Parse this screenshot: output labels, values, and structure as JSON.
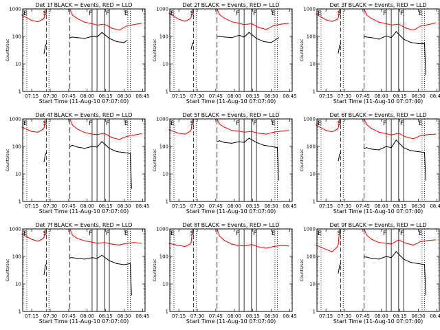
{
  "figure": {
    "title_template": "Det {det}f BLACK = Events, RED = LLD",
    "ylabel": "Counts/sec",
    "xlabel": "Start Time (11-Aug-10 07:07:40)",
    "xticks": [
      "07:15",
      "07:30",
      "07:45",
      "08:00",
      "08:15",
      "08:30",
      "08:45"
    ],
    "yticks": [
      "1",
      "10",
      "100",
      "1000"
    ],
    "flags": [
      "E",
      "S",
      "F",
      "F",
      "E"
    ]
  },
  "chart_data": [
    {
      "type": "line",
      "detector": 1,
      "title": "Det 1f BLACK = Events, RED = LLD",
      "xlabel": "Start Time (11-Aug-10 07:07:40)",
      "ylabel": "Counts/sec",
      "yscale": "log",
      "ylim": [
        1,
        1000
      ],
      "xlim": [
        "07:07",
        "08:47"
      ],
      "series": [
        {
          "name": "Events",
          "color": "#000000",
          "x": [
            "07:25",
            "07:26",
            "07:27",
            "07:46",
            "07:48",
            "07:52",
            "07:58",
            "08:04",
            "08:08",
            "08:12",
            "08:18",
            "08:24",
            "08:30",
            "08:32"
          ],
          "y": [
            24,
            45,
            55,
            90,
            95,
            90,
            85,
            100,
            95,
            140,
            85,
            65,
            60,
            70
          ]
        },
        {
          "name": "LLD",
          "color": "#ff0000",
          "x": [
            "07:07",
            "07:15",
            "07:20",
            "07:24",
            "07:25",
            "07:26",
            "07:27",
            "07:46",
            "07:48",
            "07:52",
            "07:58",
            "08:04",
            "08:08",
            "08:14",
            "08:20",
            "08:26",
            "08:32",
            "08:38",
            "08:44"
          ],
          "y": [
            600,
            380,
            340,
            420,
            470,
            1000,
            1000,
            1000,
            600,
            450,
            330,
            290,
            260,
            280,
            200,
            170,
            240,
            270,
            300
          ]
        }
      ]
    },
    {
      "type": "line",
      "detector": 2,
      "title": "Det 2f BLACK = Events, RED = LLD",
      "xlabel": "Start Time (11-Aug-10 07:07:40)",
      "ylabel": "Counts/sec",
      "yscale": "log",
      "ylim": [
        1,
        1000
      ],
      "xlim": [
        "07:07",
        "08:47"
      ],
      "series": [
        {
          "name": "Events",
          "color": "#000000",
          "x": [
            "07:25",
            "07:26",
            "07:27",
            "07:46",
            "07:48",
            "07:52",
            "07:58",
            "08:04",
            "08:08",
            "08:12",
            "08:18",
            "08:24",
            "08:30",
            "08:36"
          ],
          "y": [
            35,
            55,
            60,
            100,
            100,
            95,
            90,
            110,
            95,
            140,
            85,
            65,
            60,
            90
          ]
        },
        {
          "name": "LLD",
          "color": "#ff0000",
          "x": [
            "07:07",
            "07:15",
            "07:20",
            "07:24",
            "07:25",
            "07:26",
            "07:27",
            "07:46",
            "07:48",
            "07:52",
            "07:58",
            "08:04",
            "08:08",
            "08:14",
            "08:20",
            "08:26",
            "08:32",
            "08:38",
            "08:44"
          ],
          "y": [
            700,
            420,
            360,
            430,
            500,
            1000,
            1000,
            1000,
            620,
            460,
            340,
            300,
            270,
            290,
            210,
            180,
            250,
            280,
            300
          ]
        }
      ]
    },
    {
      "type": "line",
      "detector": 3,
      "title": "Det 3f BLACK = Events, RED = LLD",
      "xlabel": "Start Time (11-Aug-10 07:07:40)",
      "ylabel": "Counts/sec",
      "yscale": "log",
      "ylim": [
        1,
        1000
      ],
      "xlim": [
        "07:07",
        "08:47"
      ],
      "series": [
        {
          "name": "Events",
          "color": "#000000",
          "x": [
            "07:25",
            "07:26",
            "07:27",
            "07:46",
            "07:48",
            "07:52",
            "07:58",
            "08:04",
            "08:08",
            "08:12",
            "08:18",
            "08:24",
            "08:30",
            "08:35",
            "08:36"
          ],
          "y": [
            25,
            45,
            55,
            100,
            95,
            90,
            80,
            105,
            90,
            150,
            80,
            60,
            55,
            55,
            4
          ]
        },
        {
          "name": "LLD",
          "color": "#ff0000",
          "x": [
            "07:07",
            "07:15",
            "07:20",
            "07:24",
            "07:25",
            "07:26",
            "07:27",
            "07:46",
            "07:48",
            "07:52",
            "07:58",
            "08:04",
            "08:08",
            "08:14",
            "08:20",
            "08:26",
            "08:32",
            "08:38",
            "08:44"
          ],
          "y": [
            650,
            400,
            350,
            420,
            480,
            1000,
            1000,
            1000,
            600,
            450,
            330,
            290,
            260,
            280,
            200,
            170,
            240,
            270,
            310
          ]
        }
      ]
    },
    {
      "type": "line",
      "detector": 4,
      "title": "Det 4f BLACK = Events, RED = LLD",
      "xlabel": "Start Time (11-Aug-10 07:07:40)",
      "ylabel": "Counts/sec",
      "yscale": "log",
      "ylim": [
        1,
        1000
      ],
      "xlim": [
        "07:07",
        "08:47"
      ],
      "series": [
        {
          "name": "Events",
          "color": "#000000",
          "x": [
            "07:25",
            "07:26",
            "07:27",
            "07:46",
            "07:48",
            "07:52",
            "07:58",
            "08:04",
            "08:08",
            "08:12",
            "08:18",
            "08:24",
            "08:30",
            "08:35",
            "08:36"
          ],
          "y": [
            28,
            50,
            60,
            100,
            110,
            95,
            85,
            100,
            95,
            150,
            85,
            65,
            60,
            55,
            3
          ]
        },
        {
          "name": "LLD",
          "color": "#ff0000",
          "x": [
            "07:07",
            "07:15",
            "07:20",
            "07:24",
            "07:25",
            "07:26",
            "07:27",
            "07:46",
            "07:48",
            "07:52",
            "07:58",
            "08:04",
            "08:08",
            "08:14",
            "08:20",
            "08:26",
            "08:32",
            "08:38",
            "08:44"
          ],
          "y": [
            500,
            350,
            330,
            420,
            480,
            1000,
            1000,
            1000,
            600,
            430,
            320,
            280,
            270,
            300,
            210,
            180,
            230,
            260,
            290
          ]
        }
      ]
    },
    {
      "type": "line",
      "detector": 5,
      "title": "Det 5f BLACK = Events, RED = LLD",
      "xlabel": "Start Time (11-Aug-10 07:07:40)",
      "ylabel": "Counts/sec",
      "yscale": "log",
      "ylim": [
        1,
        1000
      ],
      "xlim": [
        "07:07",
        "08:47"
      ],
      "series": [
        {
          "name": "Events",
          "color": "#000000",
          "x": [
            "07:46",
            "07:48",
            "07:52",
            "07:58",
            "08:04",
            "08:08",
            "08:12",
            "08:18",
            "08:24",
            "08:30",
            "08:35",
            "08:36"
          ],
          "y": [
            150,
            160,
            140,
            130,
            150,
            140,
            200,
            140,
            110,
            100,
            90,
            6
          ]
        },
        {
          "name": "LLD",
          "color": "#ff0000",
          "x": [
            "07:07",
            "07:15",
            "07:20",
            "07:24",
            "07:25",
            "07:26",
            "07:27",
            "07:46",
            "07:48",
            "07:52",
            "07:58",
            "08:04",
            "08:08",
            "08:14",
            "08:20",
            "08:26",
            "08:32",
            "08:38",
            "08:44"
          ],
          "y": [
            400,
            300,
            280,
            350,
            400,
            1000,
            1000,
            1000,
            650,
            500,
            380,
            360,
            330,
            350,
            300,
            280,
            330,
            360,
            380
          ]
        }
      ]
    },
    {
      "type": "line",
      "detector": 6,
      "title": "Det 6f BLACK = Events, RED = LLD",
      "xlabel": "Start Time (11-Aug-10 07:07:40)",
      "ylabel": "Counts/sec",
      "yscale": "log",
      "ylim": [
        1,
        1000
      ],
      "xlim": [
        "07:07",
        "08:47"
      ],
      "series": [
        {
          "name": "Events",
          "color": "#000000",
          "x": [
            "07:25",
            "07:26",
            "07:27",
            "07:46",
            "07:48",
            "07:52",
            "07:58",
            "08:04",
            "08:08",
            "08:12",
            "08:18",
            "08:24",
            "08:30",
            "08:35",
            "08:36"
          ],
          "y": [
            30,
            50,
            60,
            85,
            90,
            80,
            75,
            100,
            90,
            170,
            90,
            70,
            65,
            60,
            6
          ]
        },
        {
          "name": "LLD",
          "color": "#ff0000",
          "x": [
            "07:07",
            "07:15",
            "07:20",
            "07:24",
            "07:25",
            "07:26",
            "07:27",
            "07:46",
            "07:48",
            "07:52",
            "07:58",
            "08:04",
            "08:08",
            "08:14",
            "08:20",
            "08:26",
            "08:32",
            "08:38",
            "08:44"
          ],
          "y": [
            600,
            380,
            340,
            420,
            480,
            1000,
            1000,
            1000,
            620,
            450,
            330,
            290,
            260,
            300,
            220,
            190,
            250,
            270,
            280
          ]
        }
      ]
    },
    {
      "type": "line",
      "detector": 7,
      "title": "Det 7f BLACK = Events, RED = LLD",
      "xlabel": "Start Time (11-Aug-10 07:07:40)",
      "ylabel": "Counts/sec",
      "yscale": "log",
      "ylim": [
        1,
        1000
      ],
      "xlim": [
        "07:07",
        "08:47"
      ],
      "series": [
        {
          "name": "Events",
          "color": "#000000",
          "x": [
            "07:25",
            "07:26",
            "07:27",
            "07:46",
            "07:48",
            "07:52",
            "07:58",
            "08:04",
            "08:08",
            "08:12",
            "08:18",
            "08:24",
            "08:30",
            "08:35",
            "08:36"
          ],
          "y": [
            22,
            45,
            55,
            90,
            90,
            85,
            80,
            90,
            85,
            110,
            70,
            55,
            50,
            55,
            4
          ]
        },
        {
          "name": "LLD",
          "color": "#ff0000",
          "x": [
            "07:07",
            "07:15",
            "07:20",
            "07:24",
            "07:25",
            "07:26",
            "07:27",
            "07:46",
            "07:48",
            "07:52",
            "07:58",
            "08:04",
            "08:08",
            "08:14",
            "08:20",
            "08:26",
            "08:32",
            "08:38",
            "08:44"
          ],
          "y": [
            650,
            420,
            360,
            440,
            500,
            1000,
            1000,
            1000,
            600,
            450,
            370,
            330,
            300,
            320,
            280,
            260,
            300,
            320,
            300
          ]
        }
      ]
    },
    {
      "type": "line",
      "detector": 8,
      "title": "Det 8f BLACK = Events, RED = LLD",
      "xlabel": "Start Time (11-Aug-10 07:07:40)",
      "ylabel": "Counts/sec",
      "yscale": "log",
      "ylim": [
        1,
        1000
      ],
      "xlim": [
        "07:07",
        "08:47"
      ],
      "series": [
        {
          "name": "LLD",
          "color": "#ff0000",
          "x": [
            "07:07",
            "07:15",
            "07:20",
            "07:24",
            "07:25",
            "07:26",
            "07:27",
            "07:46",
            "07:48",
            "07:52",
            "07:58",
            "08:04",
            "08:08",
            "08:14",
            "08:20",
            "08:26",
            "08:32",
            "08:38",
            "08:44"
          ],
          "y": [
            300,
            250,
            230,
            280,
            330,
            1000,
            1000,
            1000,
            550,
            380,
            280,
            250,
            240,
            270,
            220,
            200,
            230,
            250,
            240
          ]
        }
      ]
    },
    {
      "type": "line",
      "detector": 9,
      "title": "Det 9f BLACK = Events, RED = LLD",
      "xlabel": "Start Time (11-Aug-10 07:07:40)",
      "ylabel": "Counts/sec",
      "yscale": "log",
      "ylim": [
        1,
        1000
      ],
      "xlim": [
        "07:07",
        "08:47"
      ],
      "series": [
        {
          "name": "Events",
          "color": "#000000",
          "x": [
            "07:25",
            "07:26",
            "07:27",
            "07:46",
            "07:48",
            "07:52",
            "07:58",
            "08:04",
            "08:08",
            "08:12",
            "08:18",
            "08:24",
            "08:30",
            "08:35",
            "08:36"
          ],
          "y": [
            25,
            45,
            55,
            95,
            95,
            85,
            80,
            100,
            90,
            150,
            80,
            60,
            55,
            50,
            4
          ]
        },
        {
          "name": "LLD",
          "color": "#ff0000",
          "x": [
            "07:07",
            "07:15",
            "07:20",
            "07:24",
            "07:25",
            "07:26",
            "07:27",
            "07:46",
            "07:48",
            "07:52",
            "07:58",
            "08:04",
            "08:08",
            "08:14",
            "08:20",
            "08:26",
            "08:32",
            "08:38",
            "08:44"
          ],
          "y": [
            260,
            180,
            150,
            220,
            280,
            1000,
            1000,
            1000,
            600,
            420,
            320,
            300,
            280,
            400,
            300,
            260,
            350,
            380,
            400
          ]
        }
      ]
    }
  ]
}
